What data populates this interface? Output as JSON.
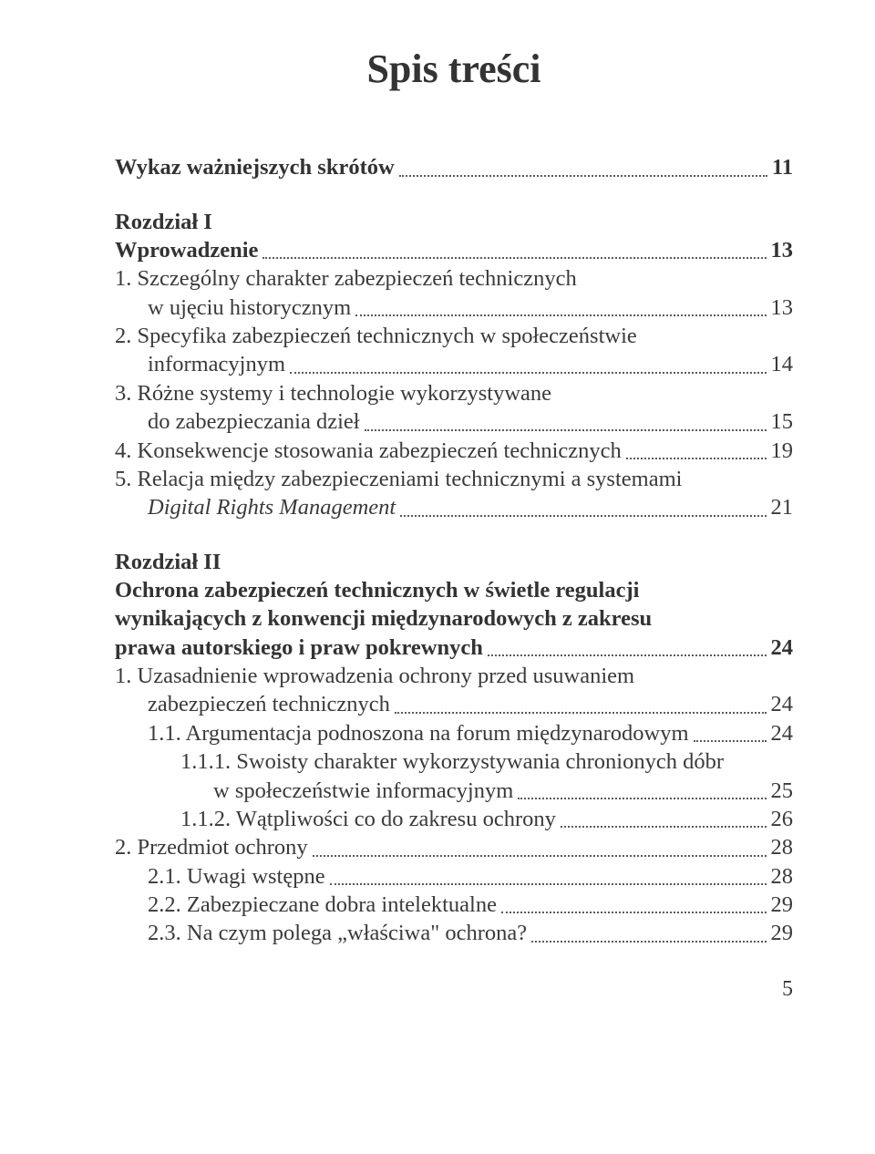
{
  "title": "Spis treści",
  "wykaz": {
    "label": "Wykaz ważniejszych skrótów",
    "page": "11"
  },
  "r1": {
    "heading": "Rozdział I",
    "title": {
      "label": "Wprowadzenie",
      "page": "13"
    },
    "i1a": "1. Szczególny charakter zabezpieczeń technicznych",
    "i1b": {
      "label": "w ujęciu historycznym",
      "page": "13"
    },
    "i2a": "2. Specyfika zabezpieczeń technicznych w społeczeństwie",
    "i2b": {
      "label": "informacyjnym",
      "page": "14"
    },
    "i3a": "3. Różne systemy i technologie wykorzystywane",
    "i3b": {
      "label": "do zabezpieczania dzieł",
      "page": "15"
    },
    "i4": {
      "label": "4. Konsekwencje stosowania zabezpieczeń technicznych",
      "page": "19"
    },
    "i5a": "5. Relacja między zabezpieczeniami technicznymi a systemami",
    "i5b_pre": "Digital Rights Management",
    "i5b_page": "21"
  },
  "r2": {
    "heading": "Rozdział II",
    "t1": "Ochrona zabezpieczeń technicznych w świetle regulacji",
    "t2": "wynikających z konwencji międzynarodowych z zakresu",
    "t3": {
      "label": "prawa autorskiego i praw pokrewnych",
      "page": "24"
    },
    "i1a": "1. Uzasadnienie wprowadzenia ochrony przed usuwaniem",
    "i1b": {
      "label": "zabezpieczeń technicznych",
      "page": "24"
    },
    "i11": {
      "label": "1.1. Argumentacja podnoszona na forum międzynarodowym",
      "page": "24"
    },
    "i111a": "1.1.1. Swoisty charakter wykorzystywania chronionych dóbr",
    "i111b": {
      "label": "w społeczeństwie informacyjnym",
      "page": "25"
    },
    "i112": {
      "label": "1.1.2. Wątpliwości co do zakresu ochrony",
      "page": "26"
    },
    "i2": {
      "label": "2. Przedmiot ochrony",
      "page": "28"
    },
    "i21": {
      "label": "2.1. Uwagi wstępne",
      "page": "28"
    },
    "i22": {
      "label": "2.2. Zabezpieczane dobra intelektualne",
      "page": "29"
    },
    "i23": {
      "label": "2.3. Na czym polega „właściwa\" ochrona?",
      "page": "29"
    }
  },
  "pagefoot": "5"
}
